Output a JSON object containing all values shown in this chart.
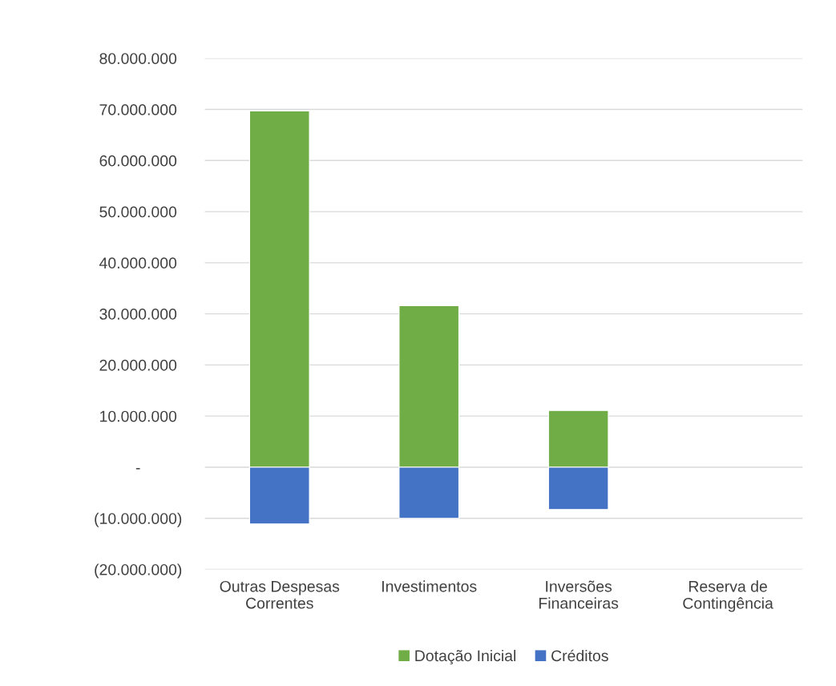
{
  "chart_data": {
    "type": "bar",
    "stacked": true,
    "categories": [
      "Outras Despesas\nCorrentes",
      "Investimentos",
      "Inversões\nFinanceiras",
      "Reserva de\nContingência"
    ],
    "series": [
      {
        "name": "Dotação Inicial",
        "color": "#70ad47",
        "values": [
          69700000,
          31600000,
          11100000,
          null
        ]
      },
      {
        "name": "Créditos",
        "color": "#4472c4",
        "values": [
          -11100000,
          -10000000,
          -8300000,
          null
        ]
      }
    ],
    "ylim": [
      -20000000,
      80000000
    ],
    "yticks": [
      {
        "value": -20000000,
        "label": "(20.000.000)"
      },
      {
        "value": -10000000,
        "label": "(10.000.000)"
      },
      {
        "value": 0,
        "label": "-"
      },
      {
        "value": 10000000,
        "label": "10.000.000"
      },
      {
        "value": 20000000,
        "label": "20.000.000"
      },
      {
        "value": 30000000,
        "label": "30.000.000"
      },
      {
        "value": 40000000,
        "label": "40.000.000"
      },
      {
        "value": 50000000,
        "label": "50.000.000"
      },
      {
        "value": 60000000,
        "label": "60.000.000"
      },
      {
        "value": 70000000,
        "label": "70.000.000"
      },
      {
        "value": 80000000,
        "label": "80.000.000"
      }
    ],
    "grid": "y",
    "legend": "bottom"
  }
}
